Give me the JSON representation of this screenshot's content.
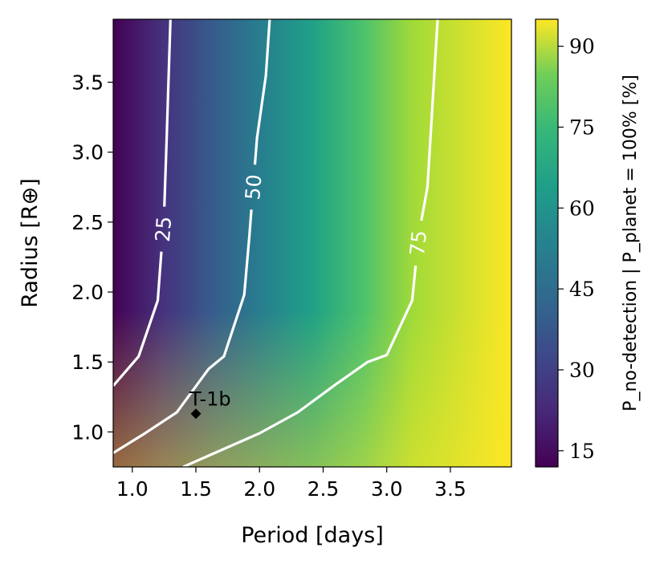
{
  "chart_data": {
    "type": "heatmap",
    "xlabel": "Period [days]",
    "ylabel": "Radius [R⊕]",
    "xlim": [
      0.85,
      3.98
    ],
    "ylim": [
      0.75,
      3.95
    ],
    "xticks": [
      1.0,
      1.5,
      2.0,
      2.5,
      3.0,
      3.5
    ],
    "xtick_labels": [
      "1.0",
      "1.5",
      "2.0",
      "2.5",
      "3.0",
      "3.5"
    ],
    "yticks": [
      1.0,
      1.5,
      2.0,
      2.5,
      3.0,
      3.5
    ],
    "ytick_labels": [
      "1.0",
      "1.5",
      "2.0",
      "2.5",
      "3.0",
      "3.5"
    ],
    "colormap": "viridis",
    "colorbar": {
      "label": "P_no-detection | P_planet = 100% [%]",
      "range": [
        12,
        95
      ],
      "ticks": [
        15,
        30,
        45,
        60,
        75,
        90
      ],
      "tick_labels": [
        "15",
        "30",
        "45",
        "60",
        "75",
        "90"
      ]
    },
    "contours": [
      {
        "level": 25,
        "label": "25",
        "points": [
          [
            0.85,
            1.33
          ],
          [
            1.05,
            1.54
          ],
          [
            1.2,
            1.94
          ],
          [
            1.25,
            2.55
          ],
          [
            1.27,
            3.1
          ],
          [
            1.3,
            3.95
          ]
        ]
      },
      {
        "level": 50,
        "label": "50",
        "points": [
          [
            0.85,
            0.85
          ],
          [
            1.1,
            0.99
          ],
          [
            1.35,
            1.14
          ],
          [
            1.6,
            1.45
          ],
          [
            1.72,
            1.54
          ],
          [
            1.88,
            1.98
          ],
          [
            1.92,
            2.4
          ],
          [
            1.98,
            3.1
          ],
          [
            2.05,
            3.55
          ],
          [
            2.08,
            3.95
          ]
        ]
      },
      {
        "level": 75,
        "label": "75",
        "points": [
          [
            1.4,
            0.75
          ],
          [
            1.6,
            0.83
          ],
          [
            2.0,
            0.99
          ],
          [
            2.3,
            1.14
          ],
          [
            2.6,
            1.34
          ],
          [
            2.85,
            1.5
          ],
          [
            3.0,
            1.55
          ],
          [
            3.2,
            1.94
          ],
          [
            3.25,
            2.4
          ],
          [
            3.32,
            2.75
          ],
          [
            3.35,
            3.2
          ],
          [
            3.4,
            3.95
          ]
        ]
      }
    ],
    "annotations": [
      {
        "label": "T-1b",
        "x": 1.5,
        "y": 1.13,
        "marker": "diamond"
      }
    ]
  }
}
